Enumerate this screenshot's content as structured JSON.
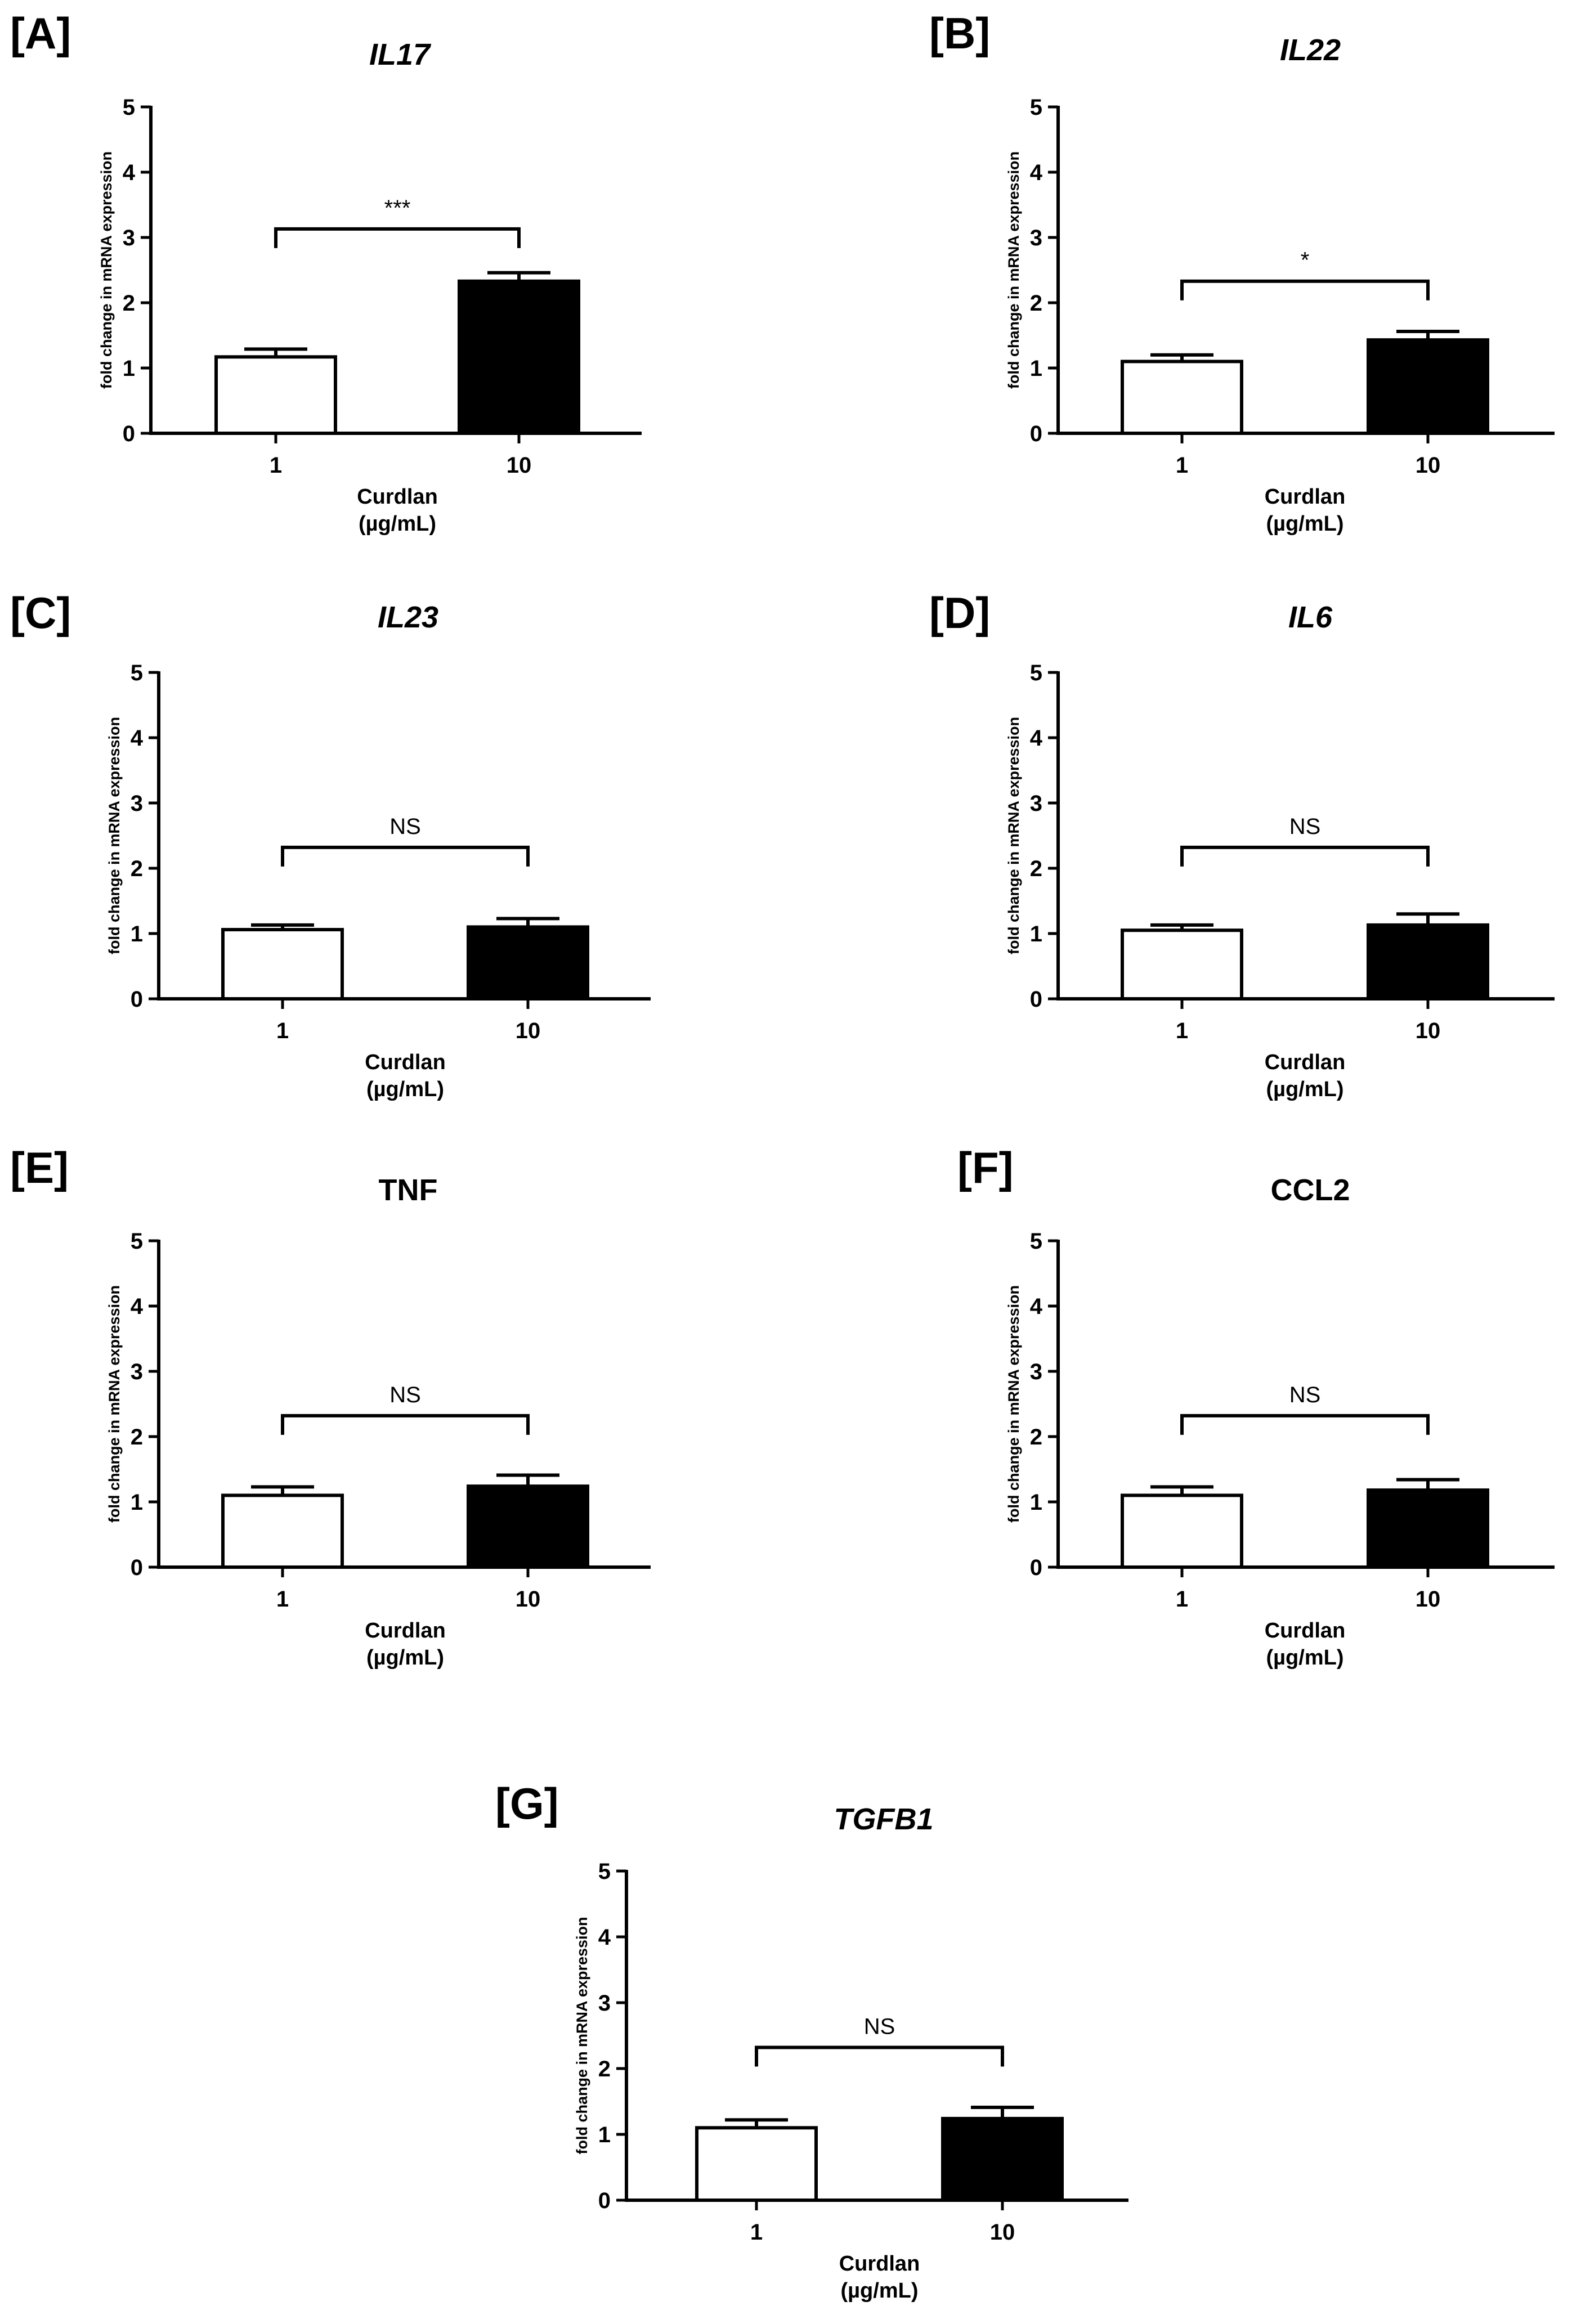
{
  "chart_data": [
    {
      "type": "bar",
      "panel_label": "[A]",
      "title": "IL17",
      "title_italic": true,
      "categories": [
        "1",
        "10"
      ],
      "values": [
        1.17,
        2.33
      ],
      "errors": [
        0.12,
        0.13
      ],
      "bar_colors": [
        "#ffffff",
        "#000000"
      ],
      "ylabel": "fold change in mRNA expression",
      "xlabel": [
        "Curdlan",
        "(µg/mL)"
      ],
      "ylim": [
        0,
        5
      ],
      "yticks": [
        "0",
        "1",
        "2",
        "3",
        "4",
        "5"
      ],
      "significance": {
        "label": "***",
        "y": 3.13
      }
    },
    {
      "type": "bar",
      "panel_label": "[B]",
      "title": "IL22",
      "title_italic": true,
      "categories": [
        "1",
        "10"
      ],
      "values": [
        1.1,
        1.43
      ],
      "errors": [
        0.1,
        0.13
      ],
      "bar_colors": [
        "#ffffff",
        "#000000"
      ],
      "ylabel": "fold change in mRNA expression",
      "xlabel": [
        "Curdlan",
        "(µg/mL)"
      ],
      "ylim": [
        0,
        5
      ],
      "yticks": [
        "0",
        "1",
        "2",
        "3",
        "4",
        "5"
      ],
      "significance": {
        "label": "*",
        "y": 2.33
      }
    },
    {
      "type": "bar",
      "panel_label": "[C]",
      "title": "IL23",
      "title_italic": true,
      "categories": [
        "1",
        "10"
      ],
      "values": [
        1.06,
        1.1
      ],
      "errors": [
        0.07,
        0.13
      ],
      "bar_colors": [
        "#ffffff",
        "#000000"
      ],
      "ylabel": "fold change in mRNA expression",
      "xlabel": [
        "Curdlan",
        "(µg/mL)"
      ],
      "ylim": [
        0,
        5
      ],
      "yticks": [
        "0",
        "1",
        "2",
        "3",
        "4",
        "5"
      ],
      "significance": {
        "label": "NS",
        "y": 2.32
      }
    },
    {
      "type": "bar",
      "panel_label": "[D]",
      "title": "IL6",
      "title_italic": true,
      "categories": [
        "1",
        "10"
      ],
      "values": [
        1.05,
        1.13
      ],
      "errors": [
        0.08,
        0.17
      ],
      "bar_colors": [
        "#ffffff",
        "#000000"
      ],
      "ylabel": "fold change in mRNA expression",
      "xlabel": [
        "Curdlan",
        "(µg/mL)"
      ],
      "ylim": [
        0,
        5
      ],
      "yticks": [
        "0",
        "1",
        "2",
        "3",
        "4",
        "5"
      ],
      "significance": {
        "label": "NS",
        "y": 2.32
      }
    },
    {
      "type": "bar",
      "panel_label": "[E]",
      "title": "TNF",
      "title_italic": false,
      "categories": [
        "1",
        "10"
      ],
      "values": [
        1.1,
        1.24
      ],
      "errors": [
        0.13,
        0.17
      ],
      "bar_colors": [
        "#ffffff",
        "#000000"
      ],
      "ylabel": "fold change in mRNA expression",
      "xlabel": [
        "Curdlan",
        "(µg/mL)"
      ],
      "ylim": [
        0,
        5
      ],
      "yticks": [
        "0",
        "1",
        "2",
        "3",
        "4",
        "5"
      ],
      "significance": {
        "label": "NS",
        "y": 2.32
      }
    },
    {
      "type": "bar",
      "panel_label": "[F]",
      "title": "CCL2",
      "title_italic": false,
      "categories": [
        "1",
        "10"
      ],
      "values": [
        1.1,
        1.18
      ],
      "errors": [
        0.13,
        0.16
      ],
      "bar_colors": [
        "#ffffff",
        "#000000"
      ],
      "ylabel": "fold change in mRNA expression",
      "xlabel": [
        "Curdlan",
        "(µg/mL)"
      ],
      "ylim": [
        0,
        5
      ],
      "yticks": [
        "0",
        "1",
        "2",
        "3",
        "4",
        "5"
      ],
      "significance": {
        "label": "NS",
        "y": 2.32
      }
    },
    {
      "type": "bar",
      "panel_label": "[G]",
      "title": "TGFB1",
      "title_italic": true,
      "categories": [
        "1",
        "10"
      ],
      "values": [
        1.1,
        1.24
      ],
      "errors": [
        0.12,
        0.17
      ],
      "bar_colors": [
        "#ffffff",
        "#000000"
      ],
      "ylabel": "fold change in mRNA expression",
      "xlabel": [
        "Curdlan",
        "(µg/mL)"
      ],
      "ylim": [
        0,
        5
      ],
      "yticks": [
        "0",
        "1",
        "2",
        "3",
        "4",
        "5"
      ],
      "significance": {
        "label": "NS",
        "y": 2.32
      }
    }
  ]
}
